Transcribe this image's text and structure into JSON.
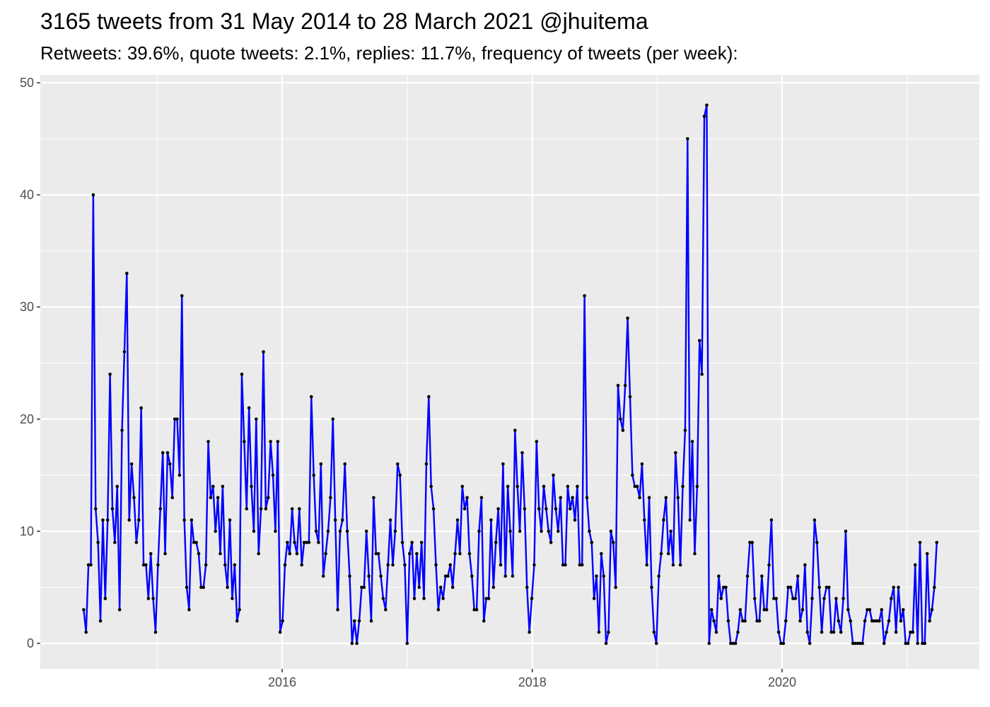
{
  "chart_data": {
    "type": "line",
    "title": "3165 tweets from 31 May 2014 to 28 March 2021 @jhuitema",
    "subtitle": "Retweets: 39.6%, quote tweets: 2.1%, replies: 11.7%, frequency of tweets (per week):",
    "xlabel": "",
    "ylabel": "",
    "x_start": "2014-05-31",
    "x_end": "2021-03-28",
    "x_interval": "week",
    "xlim": [
      "2014-03-01",
      "2021-06-01"
    ],
    "ylim": [
      -2.5,
      50.5
    ],
    "x_ticks": [
      "2016",
      "2018",
      "2020"
    ],
    "y_ticks": [
      "0",
      "10",
      "20",
      "30",
      "40",
      "50"
    ],
    "grid": true,
    "colors": {
      "line": "#0000FF",
      "points": "#000000",
      "panel": "#EBEBEB",
      "grid": "#FFFFFF"
    },
    "values": [
      3,
      1,
      7,
      7,
      40,
      12,
      9,
      2,
      11,
      4,
      11,
      24,
      12,
      9,
      14,
      3,
      19,
      26,
      33,
      11,
      16,
      13,
      9,
      11,
      21,
      7,
      7,
      4,
      8,
      4,
      1,
      7,
      12,
      17,
      8,
      17,
      16,
      13,
      20,
      20,
      15,
      31,
      11,
      5,
      3,
      11,
      9,
      9,
      8,
      5,
      5,
      7,
      18,
      13,
      14,
      10,
      13,
      8,
      14,
      7,
      5,
      11,
      4,
      7,
      2,
      3,
      24,
      18,
      12,
      21,
      14,
      10,
      20,
      8,
      12,
      26,
      12,
      13,
      18,
      15,
      10,
      18,
      1,
      2,
      7,
      9,
      8,
      12,
      9,
      8,
      12,
      7,
      9,
      9,
      9,
      22,
      15,
      10,
      9,
      16,
      6,
      8,
      10,
      13,
      20,
      11,
      3,
      10,
      11,
      16,
      10,
      6,
      0,
      2,
      0,
      2,
      5,
      5,
      10,
      6,
      2,
      13,
      8,
      8,
      6,
      4,
      3,
      7,
      11,
      7,
      10,
      16,
      15,
      9,
      7,
      0,
      8,
      9,
      4,
      8,
      5,
      9,
      4,
      16,
      22,
      14,
      12,
      7,
      3,
      5,
      4,
      6,
      6,
      7,
      5,
      8,
      11,
      8,
      14,
      12,
      13,
      8,
      6,
      3,
      3,
      10,
      13,
      2,
      4,
      4,
      11,
      5,
      9,
      12,
      7,
      16,
      6,
      14,
      10,
      6,
      19,
      14,
      10,
      17,
      12,
      5,
      1,
      4,
      7,
      18,
      12,
      10,
      14,
      12,
      10,
      9,
      15,
      12,
      10,
      13,
      7,
      7,
      14,
      12,
      13,
      11,
      14,
      7,
      7,
      31,
      13,
      10,
      9,
      4,
      6,
      1,
      8,
      6,
      0,
      1,
      10,
      9,
      5,
      23,
      20,
      19,
      23,
      29,
      22,
      15,
      14,
      14,
      13,
      16,
      11,
      7,
      13,
      5,
      1,
      0,
      6,
      8,
      11,
      13,
      8,
      10,
      7,
      17,
      13,
      7,
      14,
      19,
      45,
      11,
      18,
      8,
      14,
      27,
      24,
      47,
      48,
      0,
      3,
      2,
      1,
      6,
      4,
      5,
      5,
      2,
      0,
      0,
      0,
      1,
      3,
      2,
      2,
      6,
      9,
      9,
      4,
      2,
      2,
      6,
      3,
      3,
      7,
      11,
      4,
      4,
      1,
      0,
      0,
      2,
      5,
      5,
      4,
      4,
      6,
      2,
      3,
      7,
      1,
      0,
      4,
      11,
      9,
      5,
      1,
      4,
      5,
      5,
      1,
      1,
      4,
      2,
      1,
      4,
      10,
      3,
      2,
      0,
      0,
      0,
      0,
      0,
      2,
      3,
      3,
      2,
      2,
      2,
      2,
      3,
      0,
      1,
      2,
      4,
      5,
      1,
      5,
      2,
      3,
      0,
      0,
      1,
      1,
      7,
      0,
      9,
      0,
      0,
      8,
      2,
      3,
      5,
      9
    ]
  }
}
